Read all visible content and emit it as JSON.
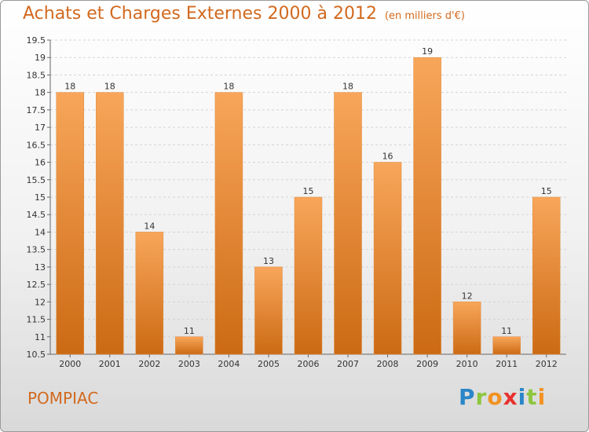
{
  "title": "Achats et Charges Externes 2000 à 2012",
  "unit": "(en milliers d'€)",
  "location": "POMPIAC",
  "logo": {
    "letters": [
      "P",
      "r",
      "o",
      "x",
      "i",
      "t",
      "i"
    ],
    "colors": [
      "#2a86c8",
      "#8dc63f",
      "#f29222",
      "#e8312f",
      "#2a86c8",
      "#8dc63f",
      "#f29222"
    ]
  },
  "chart_data": {
    "type": "bar",
    "title": "Achats et Charges Externes 2000 à 2012",
    "xlabel": "",
    "ylabel": "",
    "categories": [
      "2000",
      "2001",
      "2002",
      "2003",
      "2004",
      "2005",
      "2006",
      "2007",
      "2008",
      "2009",
      "2010",
      "2011",
      "2012"
    ],
    "values": [
      18,
      18,
      14,
      11,
      18,
      13,
      15,
      18,
      16,
      19,
      12,
      11,
      15
    ],
    "ylim": [
      10.5,
      19.5
    ],
    "yticks": [
      "10.5",
      "11",
      "11.5",
      "12",
      "12.5",
      "13",
      "13.5",
      "14",
      "14.5",
      "15",
      "15.5",
      "16",
      "16.5",
      "17",
      "17.5",
      "18",
      "18.5",
      "19",
      "19.5"
    ],
    "grid": true,
    "bar_color": "#f28c28"
  }
}
